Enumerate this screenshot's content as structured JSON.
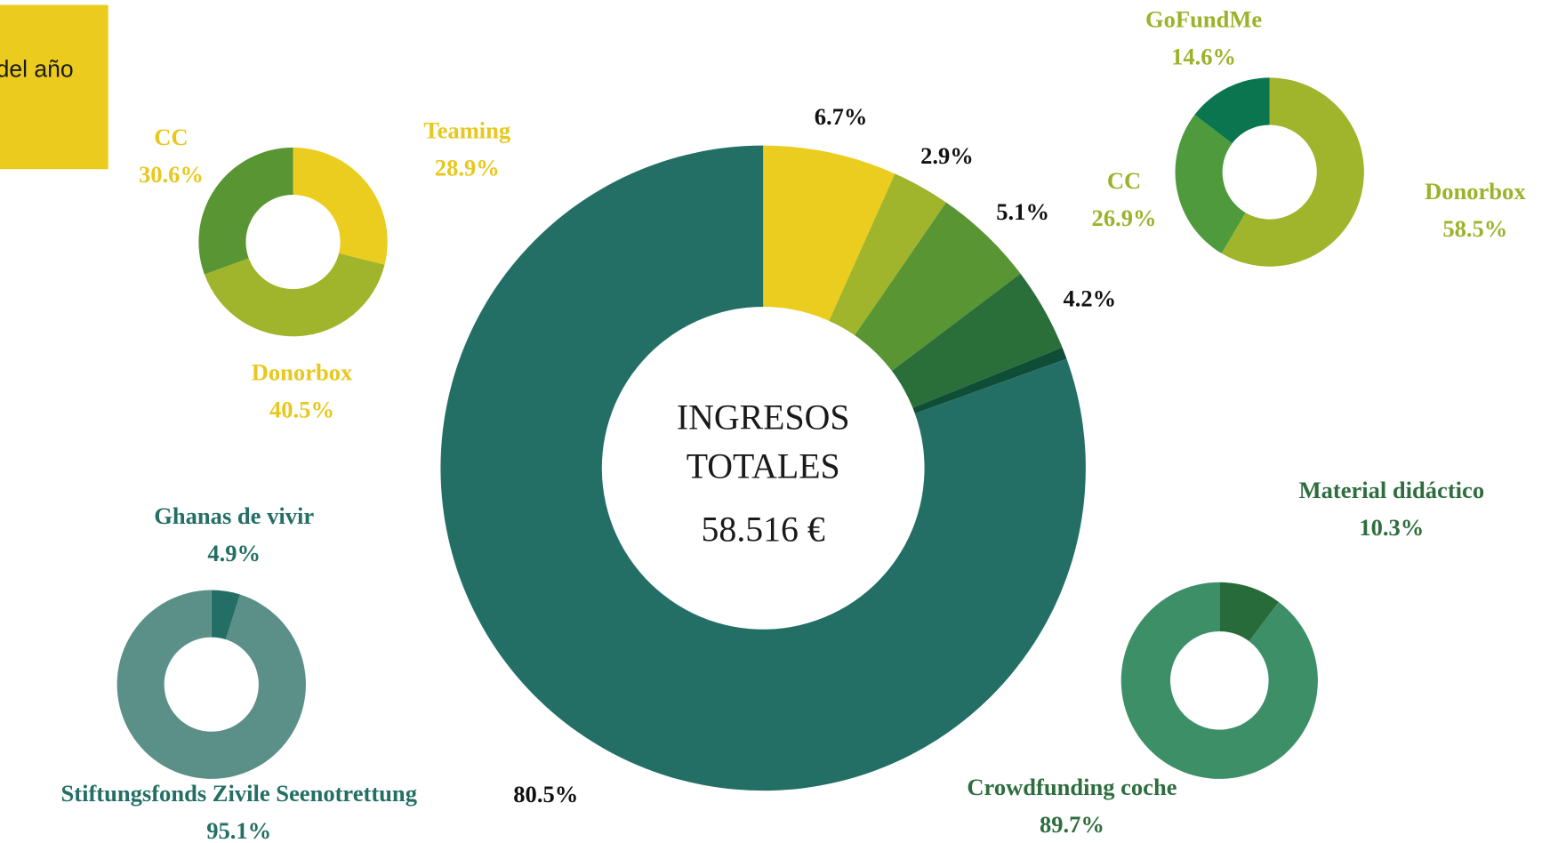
{
  "note_fragment": "del año",
  "chart_data": [
    {
      "type": "donut",
      "title": "INGRESOS TOTALES",
      "subtitle": "58.516 €",
      "values": [
        6.7,
        2.9,
        5.1,
        4.2,
        0.6,
        80.5
      ],
      "value_labels": [
        "6.7%",
        "2.9%",
        "5.1%",
        "4.2%",
        null,
        "80.5%"
      ],
      "colors": [
        "#ebcd1f",
        "#a0b52b",
        "#5a9533",
        "#2a6e3a",
        "#0f4d36",
        "#236f66"
      ],
      "label_color": "#111111"
    },
    {
      "type": "donut",
      "categories": [
        "Teaming",
        "Donorbox",
        "CC"
      ],
      "values": [
        28.9,
        40.5,
        30.6
      ],
      "value_labels": [
        "28.9%",
        "40.5%",
        "30.6%"
      ],
      "colors": [
        "#ebcd1f",
        "#a0b52b",
        "#5a9533"
      ],
      "label_color": "#e8c81e"
    },
    {
      "type": "donut",
      "categories": [
        "Donorbox",
        "CC",
        "GoFundMe"
      ],
      "values": [
        58.5,
        26.9,
        14.6
      ],
      "value_labels": [
        "58.5%",
        "26.9%",
        "14.6%"
      ],
      "colors": [
        "#a0b52b",
        "#4e9a3c",
        "#0b7550"
      ],
      "label_color": "#9db22b"
    },
    {
      "type": "donut",
      "categories": [
        "Ghanas de vivir",
        "Stiftungsfonds Zivile Seenotrettung"
      ],
      "values": [
        4.9,
        95.1
      ],
      "value_labels": [
        "4.9%",
        "95.1%"
      ],
      "colors": [
        "#236f66",
        "#5a9087"
      ],
      "label_color": "#236f65"
    },
    {
      "type": "donut",
      "categories": [
        "Material didáctico",
        "Crowdfunding coche"
      ],
      "values": [
        10.3,
        89.7
      ],
      "value_labels": [
        "10.3%",
        "89.7%"
      ],
      "colors": [
        "#286b3a",
        "#3d8f68"
      ],
      "label_color": "#2e6e3e"
    }
  ]
}
